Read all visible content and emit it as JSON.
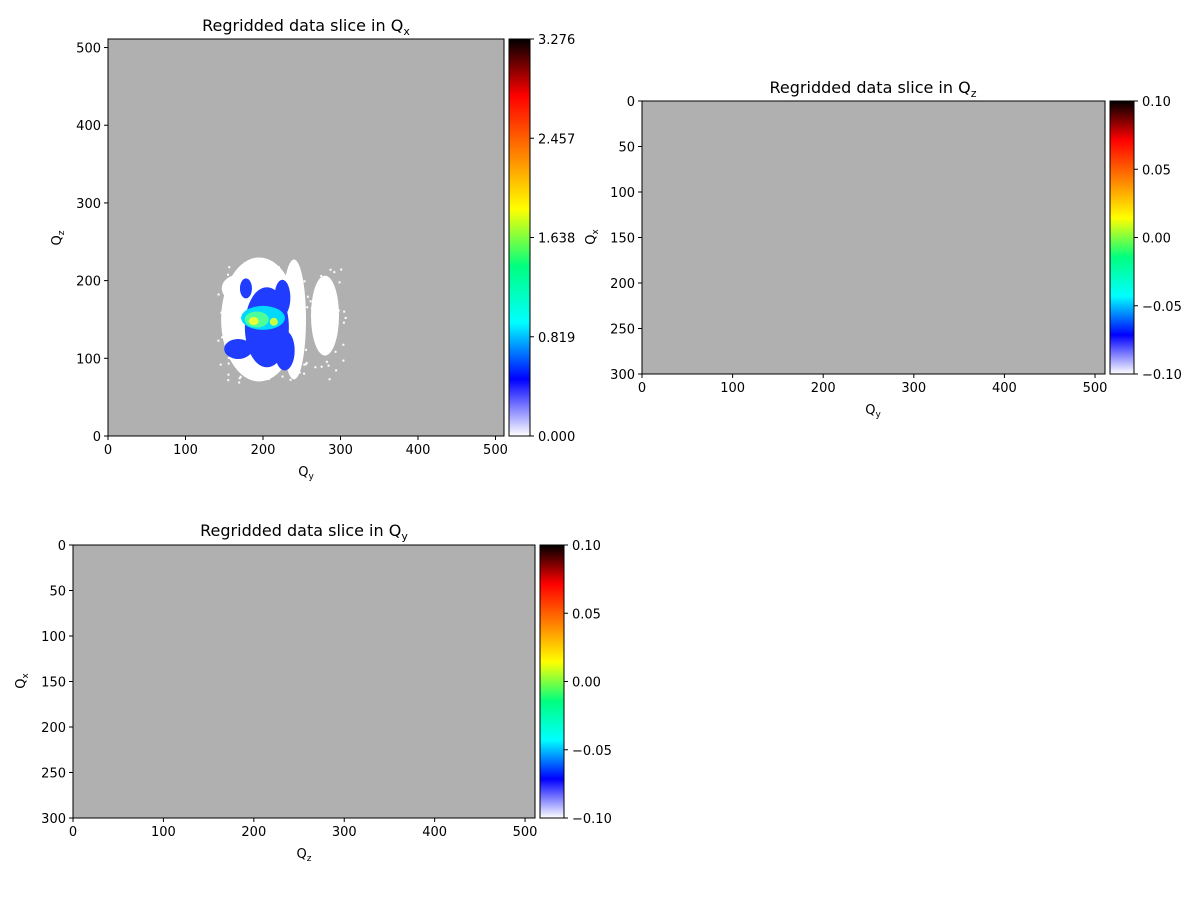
{
  "colors": {
    "background": "#ffffff",
    "masked": "#b0b0b0",
    "axis": "#000000",
    "colormap": [
      "#ffffff",
      "#0000ff",
      "#00ffff",
      "#00ff7f",
      "#ffff00",
      "#ff7f00",
      "#ff0000",
      "#000000"
    ]
  },
  "chart_data": [
    {
      "type": "heatmap",
      "title_main": "Regridded data slice in Q",
      "title_sub": "x",
      "xlabel_main": "Q",
      "xlabel_sub": "y",
      "ylabel_main": "Q",
      "ylabel_sub": "z",
      "xlim": [
        0,
        511
      ],
      "ylim": [
        0,
        511
      ],
      "y_inverted": false,
      "xticks": [
        0,
        100,
        200,
        300,
        400,
        500
      ],
      "yticks": [
        0,
        100,
        200,
        300,
        400,
        500
      ],
      "colorbar": {
        "range": [
          0.0,
          3.276
        ],
        "ticks": [
          0.0,
          0.819,
          1.638,
          2.457,
          3.276
        ],
        "tick_labels": [
          "0.000",
          "0.819",
          "1.638",
          "2.457",
          "3.276"
        ]
      },
      "features": {
        "background": "masked (gray)",
        "peak_center": [
          195,
          150
        ],
        "peak_max": 3.276,
        "description_colors": "cluster of blue/cyan/green/yellow intensity around Qy≈200, Qz≈150 with white low-value halo"
      }
    },
    {
      "type": "heatmap",
      "title_main": "Regridded data slice in Q",
      "title_sub": "z",
      "xlabel_main": "Q",
      "xlabel_sub": "y",
      "ylabel_main": "Q",
      "ylabel_sub": "x",
      "xlim": [
        0,
        511
      ],
      "ylim": [
        0,
        300
      ],
      "y_inverted": true,
      "xticks": [
        0,
        100,
        200,
        300,
        400,
        500
      ],
      "yticks": [
        0,
        50,
        100,
        150,
        200,
        250,
        300
      ],
      "colorbar": {
        "range": [
          -0.1,
          0.1
        ],
        "ticks": [
          -0.1,
          -0.05,
          0.0,
          0.05,
          0.1
        ],
        "tick_labels": [
          "−0.10",
          "−0.05",
          "0.00",
          "0.05",
          "0.10"
        ]
      },
      "features": {
        "background": "masked (gray)"
      }
    },
    {
      "type": "heatmap",
      "title_main": "Regridded data slice in Q",
      "title_sub": "y",
      "xlabel_main": "Q",
      "xlabel_sub": "z",
      "ylabel_main": "Q",
      "ylabel_sub": "x",
      "xlim": [
        0,
        511
      ],
      "ylim": [
        0,
        300
      ],
      "y_inverted": true,
      "xticks": [
        0,
        100,
        200,
        300,
        400,
        500
      ],
      "yticks": [
        0,
        50,
        100,
        150,
        200,
        250,
        300
      ],
      "colorbar": {
        "range": [
          -0.1,
          0.1
        ],
        "ticks": [
          -0.1,
          -0.05,
          0.0,
          0.05,
          0.1
        ],
        "tick_labels": [
          "−0.10",
          "−0.05",
          "0.00",
          "0.05",
          "0.10"
        ]
      },
      "features": {
        "background": "masked (gray)"
      }
    }
  ]
}
